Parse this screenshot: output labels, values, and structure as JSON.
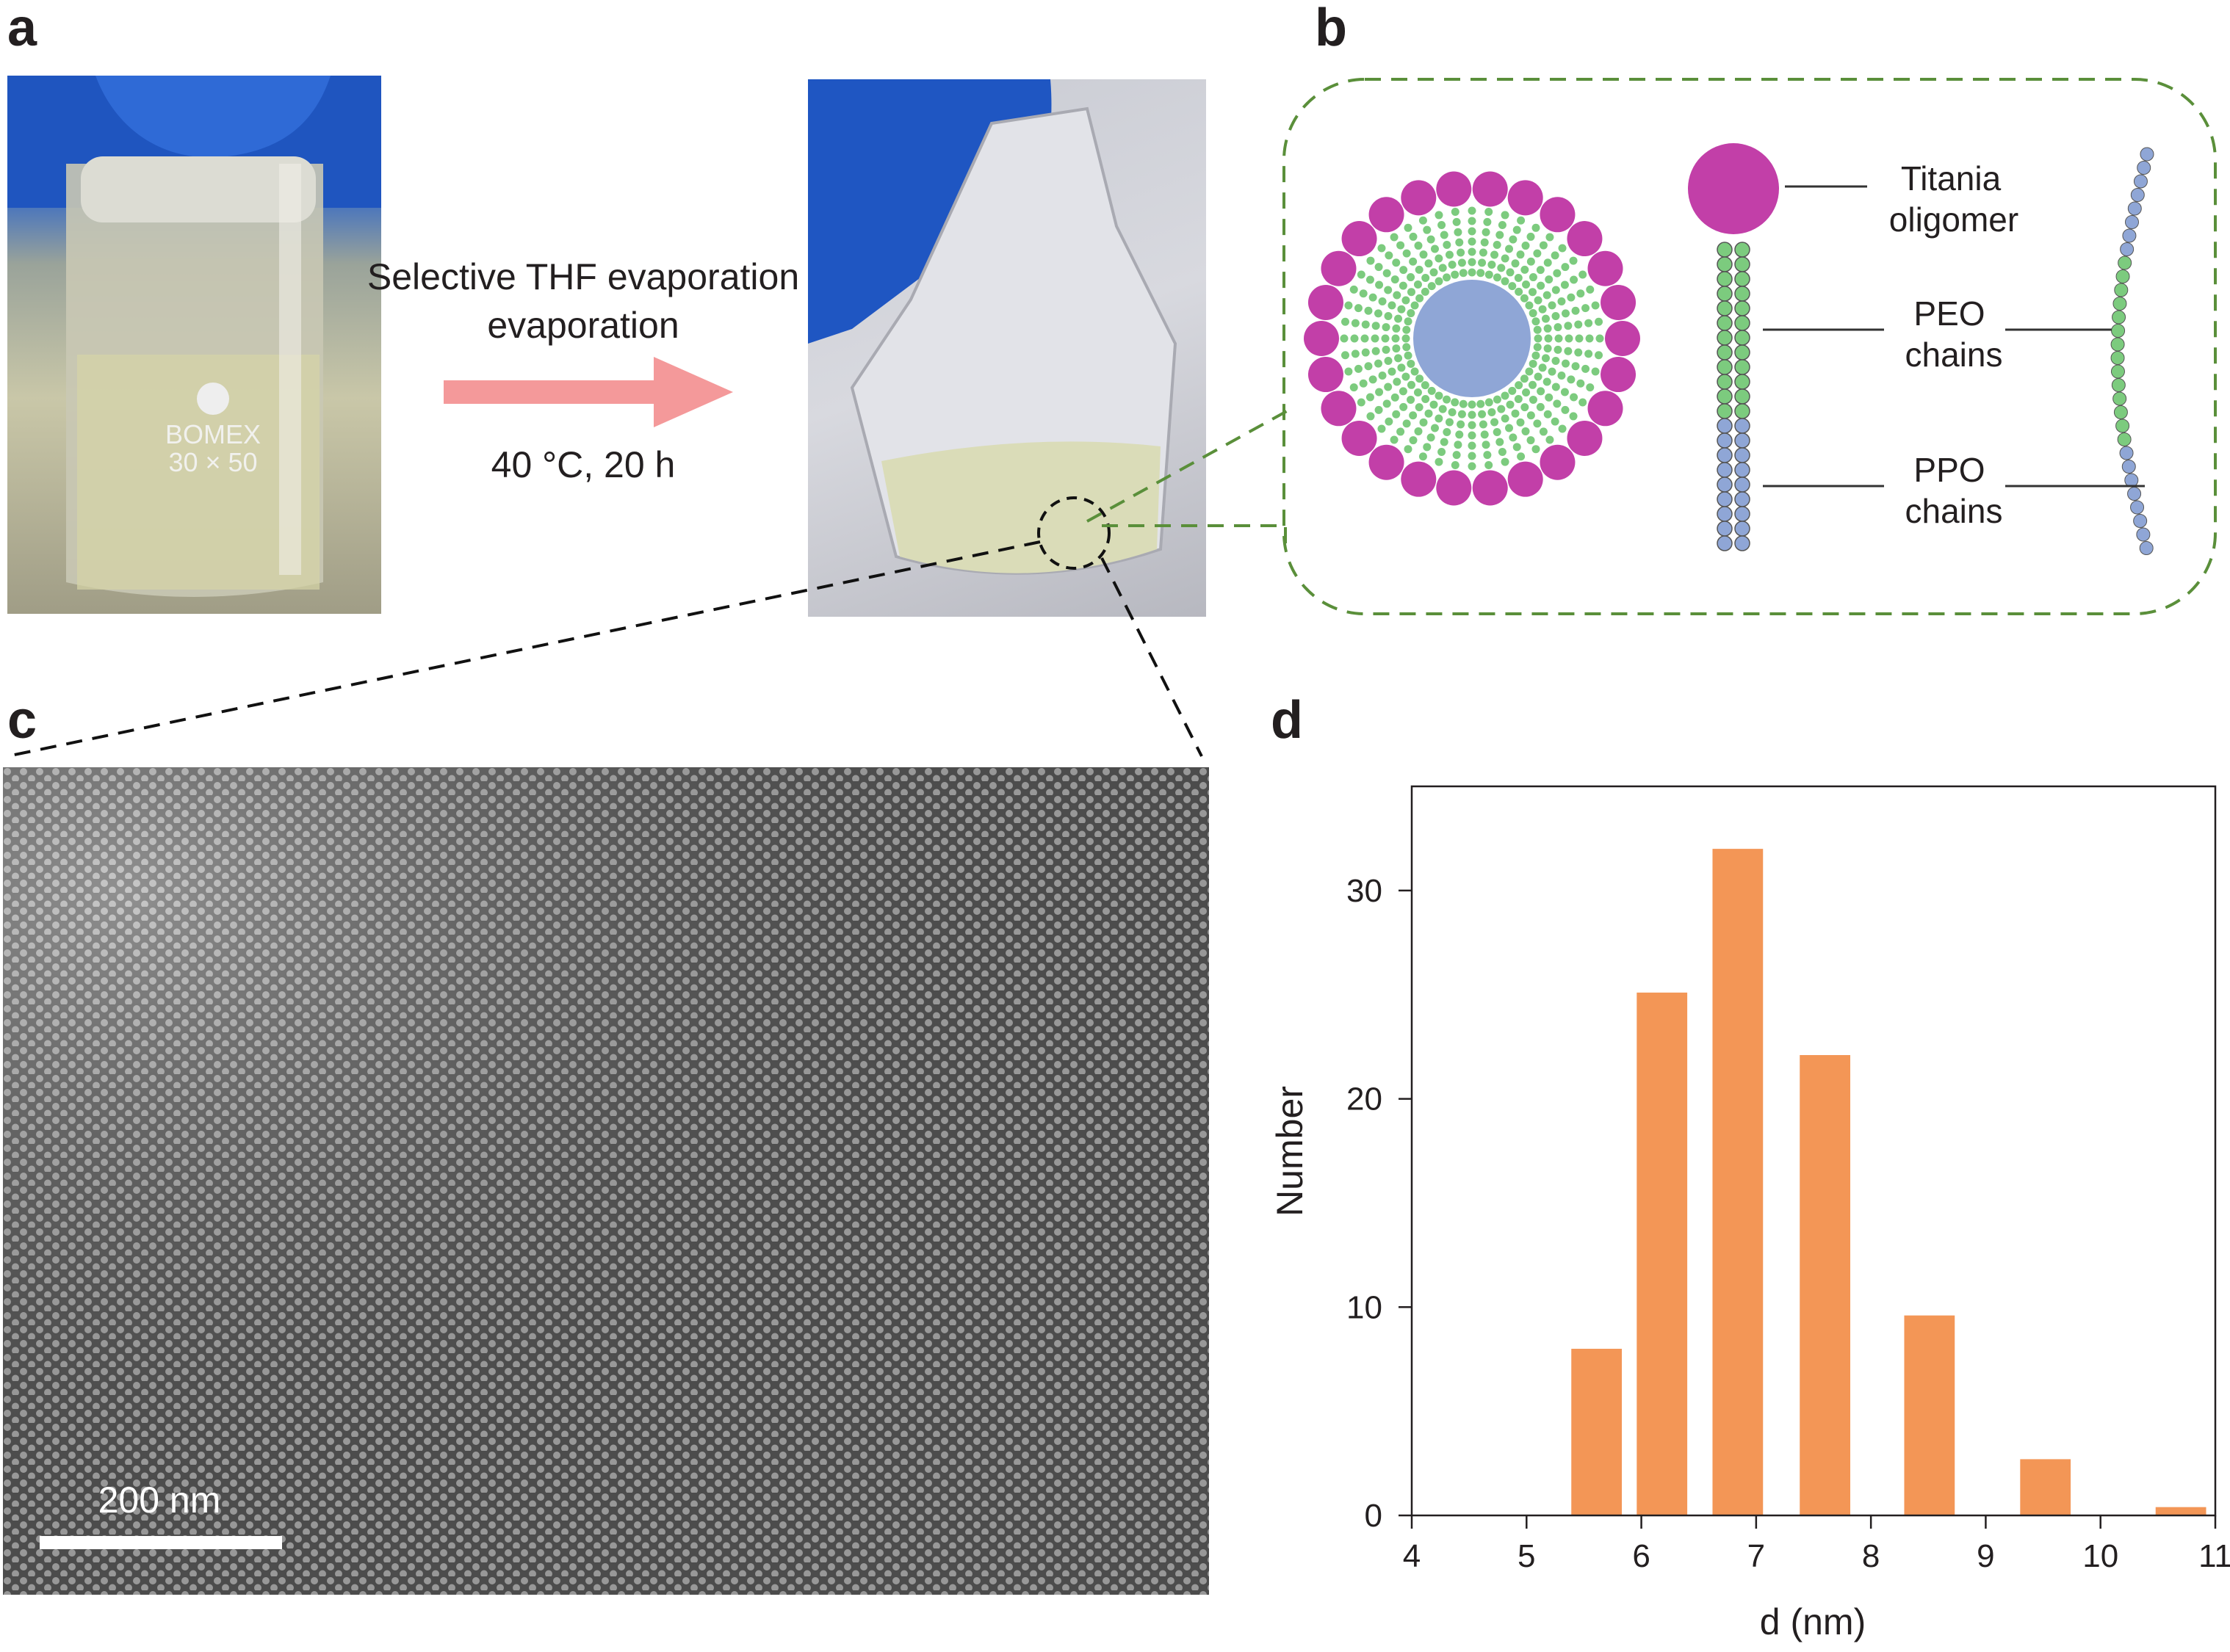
{
  "panels": {
    "a": "a",
    "b": "b",
    "c": "c",
    "d": "d"
  },
  "panel_a": {
    "process_label_line1": "Selective THF evaporation",
    "process_label_line2": "evaporation",
    "conditions": "40 °C, 20 h",
    "beaker_lettering": "BOMEX 30 × 50",
    "arrow_color": "#f4999a"
  },
  "panel_b": {
    "titania_line1": "Titania",
    "titania_line2": "oligomer",
    "peo_line1": "PEO",
    "peo_line2": "chains",
    "ppo_line1": "PPO",
    "ppo_line2": "chains",
    "colors": {
      "titania": "#c23fa8",
      "peo": "#7ccb7e",
      "ppo": "#8fa6d6",
      "box": "#5a8f3a"
    }
  },
  "panel_c": {
    "scale_bar": "200 nm"
  },
  "chart_data": {
    "type": "bar",
    "xlabel": "d (nm)",
    "ylabel": "Number",
    "xlim": [
      4,
      11
    ],
    "ylim": [
      0,
      35
    ],
    "xticks": [
      4,
      5,
      6,
      7,
      8,
      9,
      10,
      11
    ],
    "yticks": [
      0,
      10,
      20,
      30
    ],
    "bar_width": 0.44,
    "x": [
      5.61,
      6.18,
      6.84,
      7.6,
      8.51,
      9.52,
      10.7
    ],
    "values": [
      8,
      25.1,
      32,
      22.1,
      9.6,
      2.7,
      0.4
    ],
    "color": "#f39656",
    "grid": false,
    "legend": "none"
  }
}
